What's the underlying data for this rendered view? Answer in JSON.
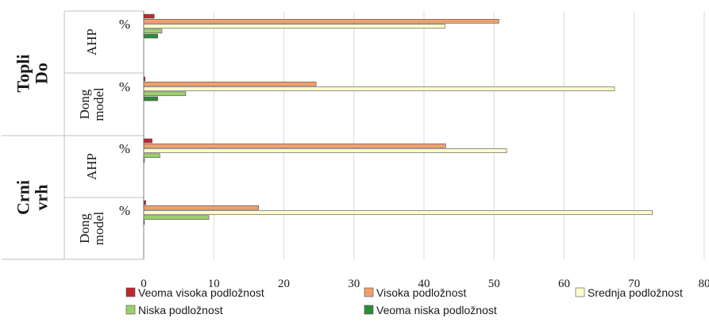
{
  "chart_data": {
    "type": "bar",
    "orientation": "horizontal",
    "xlim": [
      0,
      80
    ],
    "x_ticks": [
      "0",
      "10",
      "20",
      "30",
      "40",
      "50",
      "60",
      "70",
      "80"
    ],
    "grid": true,
    "legend_position": "bottom",
    "groups": [
      {
        "location": "Topli Do",
        "methods": [
          {
            "method": "AHP",
            "unit": "%",
            "values": [
              1.5,
              50.7,
              43.0,
              2.6,
              2.0
            ]
          },
          {
            "method": "Dong model",
            "unit": "%",
            "values": [
              0.2,
              24.6,
              67.2,
              6.0,
              2.0
            ]
          }
        ]
      },
      {
        "location": "Crni vrh",
        "methods": [
          {
            "method": "AHP",
            "unit": "%",
            "values": [
              1.2,
              43.1,
              51.8,
              2.3,
              0.1
            ]
          },
          {
            "method": "Dong model",
            "unit": "%",
            "values": [
              0.3,
              16.4,
              72.6,
              9.3,
              0.1
            ]
          }
        ]
      }
    ],
    "series": [
      {
        "name": "Veoma visoka podložnost",
        "color": "#c0272d"
      },
      {
        "name": "Visoka podložnost",
        "color": "#f2a06a"
      },
      {
        "name": "Srednja podložnost",
        "color": "#fdfbcd"
      },
      {
        "name": "Niska podložnost",
        "color": "#9dd06a"
      },
      {
        "name": "Veoma niska podložnost",
        "color": "#2e8b3b"
      }
    ]
  }
}
